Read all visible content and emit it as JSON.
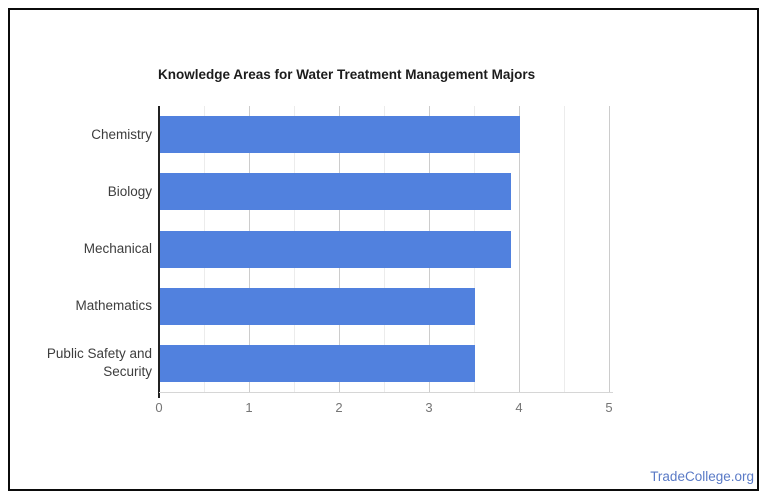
{
  "page": {
    "background_color": "#ffffff",
    "frame_border_color": "#0b0b0b"
  },
  "chart_data": {
    "type": "bar",
    "orientation": "horizontal",
    "title": "Knowledge Areas for Water Treatment Management Majors",
    "categories": [
      "Chemistry",
      "Biology",
      "Mechanical",
      "Mathematics",
      "Public Safety and Security"
    ],
    "values": [
      4,
      3.9,
      3.9,
      3.5,
      3.5
    ],
    "xlabel": "",
    "ylabel": "",
    "xlim": [
      0,
      5
    ],
    "x_ticks": [
      0,
      1,
      2,
      3,
      4,
      5
    ],
    "minor_gridline_step": 0.5,
    "grid": "on",
    "legend": "none",
    "bar_color": "#5181de",
    "grid_major_color": "#cccccc",
    "grid_minor_color": "#ececec",
    "axis_line_color": "#212121",
    "baseline_color": "#d6d6d6",
    "tick_label_color": "#757575",
    "category_label_color": "#3d3d3d",
    "title_color": "#1c1c1c"
  },
  "footer": {
    "brand": "TradeCollege.org",
    "brand_color": "#5a7ac6"
  }
}
